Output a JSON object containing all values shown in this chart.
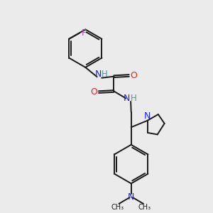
{
  "background_color": "#ebebeb",
  "bond_color": "#1a1a1a",
  "N_color": "#2020ee",
  "O_color": "#ee2020",
  "F_color": "#cc44cc",
  "H_color": "#4a9a9a",
  "figsize": [
    3.0,
    3.0
  ],
  "dpi": 100,
  "xlim": [
    0,
    10
  ],
  "ylim": [
    0,
    10
  ]
}
